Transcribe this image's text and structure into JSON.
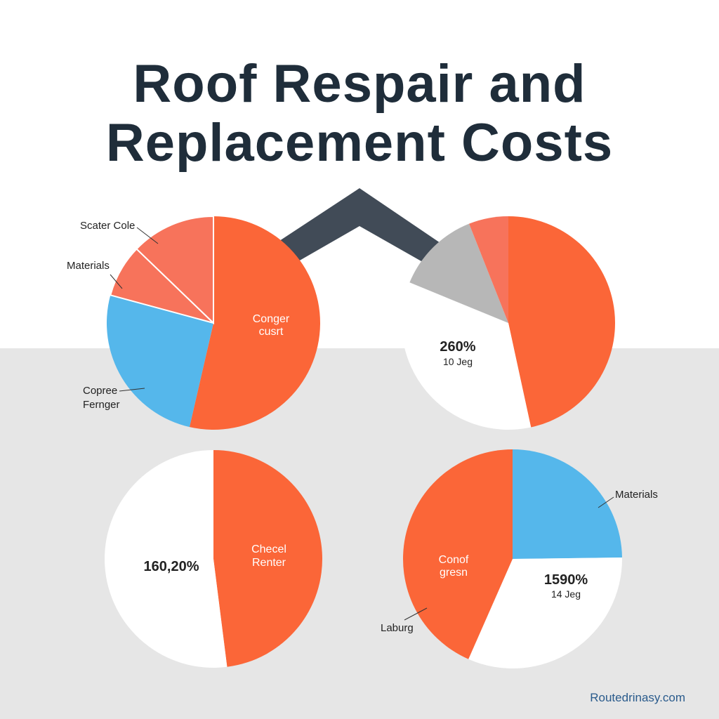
{
  "page": {
    "title_lines": [
      "Roof Respair and",
      "Replacement Costs"
    ],
    "footer": "Routedrinasy.com"
  },
  "colors": {
    "orange": "#fb6638",
    "salmon": "#f7735b",
    "blue": "#55b7eb",
    "gray": "#b7b7b7",
    "white": "#ffffff",
    "dark": "#414b57",
    "title": "#1f2d3a"
  },
  "decor": {
    "roof_icon": "roof-chevron-icon"
  },
  "chart_data": [
    {
      "type": "pie",
      "start_angle": 0,
      "slices": [
        {
          "share": 0.536,
          "color": "#fb6638",
          "stroke": "none"
        },
        {
          "share": 0.256,
          "color": "#55b7eb",
          "stroke": "none"
        },
        {
          "share": 0.08,
          "color": "#f7735b",
          "stroke": "#ffffff"
        },
        {
          "share": 0.128,
          "color": "#f7735b",
          "stroke": "#ffffff"
        }
      ],
      "labels": {
        "inside": [
          "Conger",
          "cusrt"
        ],
        "top_callout": "Scater Cole",
        "middle_callout": "Materials",
        "bottom_callout": [
          "Copree",
          "Fernger"
        ]
      }
    },
    {
      "type": "pie",
      "start_angle": 0,
      "slices": [
        {
          "share": 0.466,
          "color": "#fb6638",
          "stroke": "none"
        },
        {
          "share": 0.346,
          "color": "#ffffff",
          "stroke": "none"
        },
        {
          "share": 0.128,
          "color": "#b7b7b7",
          "stroke": "none"
        },
        {
          "share": 0.06,
          "color": "#f7735b",
          "stroke": "none"
        }
      ],
      "labels": {
        "value": "260%",
        "subvalue": "10 Jeg"
      }
    },
    {
      "type": "pie",
      "start_angle": 0,
      "slices": [
        {
          "share": 0.48,
          "color": "#fb6638",
          "stroke": "none"
        },
        {
          "share": 0.52,
          "color": "#ffffff",
          "stroke": "none"
        }
      ],
      "labels": {
        "value": "160,20%",
        "inside": [
          "Checel",
          "Renter"
        ]
      }
    },
    {
      "type": "pie",
      "start_angle": 0,
      "slices": [
        {
          "share": 0.248,
          "color": "#55b7eb",
          "stroke": "none"
        },
        {
          "share": 0.318,
          "color": "#ffffff",
          "stroke": "none"
        },
        {
          "share": 0.434,
          "color": "#fb6638",
          "stroke": "none"
        }
      ],
      "labels": {
        "value": "1590%",
        "subvalue": "14 Jeg",
        "inside": [
          "Conof",
          "gresn"
        ],
        "top_callout": "Materials",
        "bottom_callout": "Laburg"
      }
    }
  ]
}
